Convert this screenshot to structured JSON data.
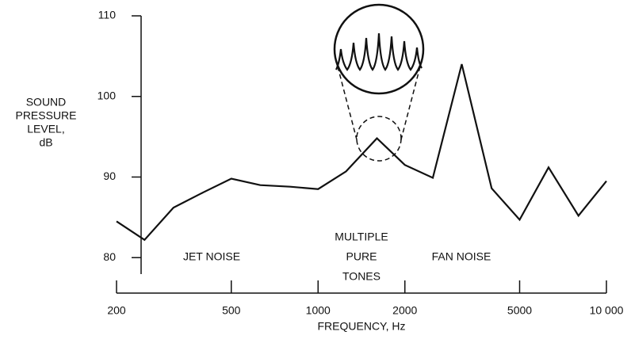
{
  "chart_data": {
    "type": "line",
    "x": [
      200,
      250,
      315,
      400,
      500,
      630,
      800,
      1000,
      1250,
      1600,
      2000,
      2500,
      3150,
      4000,
      5000,
      6300,
      8000,
      10000
    ],
    "values": [
      84.5,
      82.2,
      86.2,
      88.1,
      89.8,
      89.0,
      88.8,
      88.5,
      90.7,
      94.8,
      91.5,
      89.9,
      104,
      88.6,
      84.7,
      91.2,
      85.2,
      89.5
    ],
    "color": "#111111",
    "xscale": "log",
    "xlim": [
      200,
      10000
    ],
    "xticks": [
      200,
      500,
      1000,
      2000,
      5000,
      {
        "value": 10000,
        "label": "10 000"
      }
    ],
    "ylim": [
      75.5,
      110
    ],
    "yticks": [
      80,
      90,
      100,
      110
    ],
    "xlabel": "FREQUENCY, Hz",
    "ylabel_lines": [
      "SOUND",
      "PRESSURE",
      "LEVEL,",
      "dB"
    ],
    "annotations": [
      {
        "lines": [
          "JET NOISE"
        ]
      },
      {
        "lines": [
          "MULTIPLE",
          "PURE",
          "TONES"
        ]
      },
      {
        "lines": [
          "FAN NOISE"
        ]
      }
    ]
  }
}
